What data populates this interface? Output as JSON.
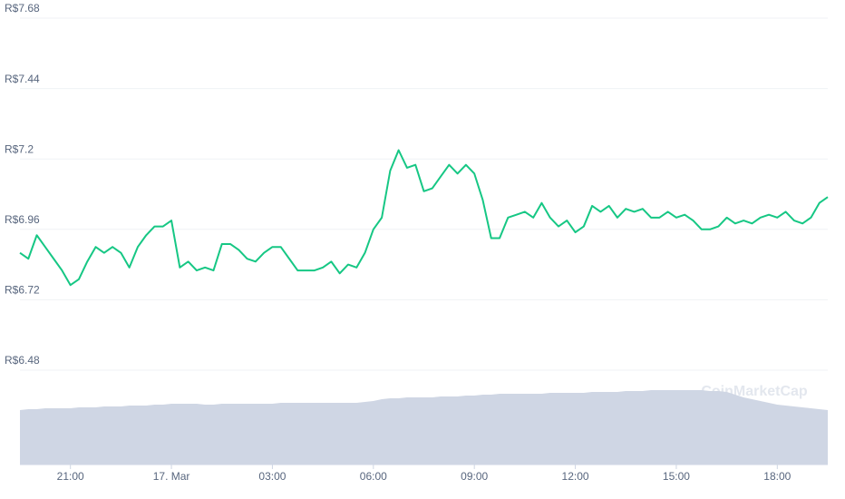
{
  "chart_data": {
    "type": "line",
    "watermark": "CoinMarketCap",
    "xlim": [
      0,
      96
    ],
    "xticks": [
      {
        "value": 6,
        "label": "21:00"
      },
      {
        "value": 18,
        "label": "17. Mar"
      },
      {
        "value": 30,
        "label": "03:00"
      },
      {
        "value": 42,
        "label": "06:00"
      },
      {
        "value": 54,
        "label": "09:00"
      },
      {
        "value": 66,
        "label": "12:00"
      },
      {
        "value": 78,
        "label": "15:00"
      },
      {
        "value": 90,
        "label": "18:00"
      }
    ],
    "ylim": [
      6.48,
      7.68
    ],
    "yticks": [
      {
        "value": 6.48,
        "label": "R$6.48"
      },
      {
        "value": 6.72,
        "label": "R$6.72"
      },
      {
        "value": 6.96,
        "label": "R$6.96"
      },
      {
        "value": 7.2,
        "label": "R$7.2"
      },
      {
        "value": 7.44,
        "label": "R$7.44"
      },
      {
        "value": 7.68,
        "label": "R$7.68"
      }
    ],
    "y2lim": [
      0,
      420
    ],
    "grid": true,
    "series": [
      {
        "color": "#16c784",
        "values": [
          6.88,
          6.86,
          6.94,
          6.9,
          6.86,
          6.82,
          6.77,
          6.79,
          6.85,
          6.9,
          6.88,
          6.9,
          6.88,
          6.83,
          6.9,
          6.94,
          6.97,
          6.97,
          6.99,
          6.83,
          6.85,
          6.82,
          6.83,
          6.82,
          6.91,
          6.91,
          6.89,
          6.86,
          6.85,
          6.88,
          6.9,
          6.9,
          6.86,
          6.82,
          6.82,
          6.82,
          6.83,
          6.85,
          6.81,
          6.84,
          6.83,
          6.88,
          6.96,
          7.0,
          7.16,
          7.23,
          7.17,
          7.18,
          7.09,
          7.1,
          7.14,
          7.18,
          7.15,
          7.18,
          7.15,
          7.06,
          6.93,
          6.93,
          7.0,
          7.01,
          7.02,
          7.0,
          7.05,
          7.0,
          6.97,
          6.99,
          6.95,
          6.97,
          7.04,
          7.02,
          7.04,
          7.0,
          7.03,
          7.02,
          7.03,
          7.0,
          7.0,
          7.02,
          7.0,
          7.01,
          6.99,
          6.96,
          6.96,
          6.97,
          7.0,
          6.98,
          6.99,
          6.98,
          7.0,
          7.01,
          7.0,
          7.02,
          6.99,
          6.98,
          7.0,
          7.05,
          7.07
        ]
      },
      {
        "color": "#cfd6e4",
        "axis": "y2",
        "values": [
          60,
          61,
          61,
          62,
          62,
          62,
          62,
          63,
          63,
          63,
          64,
          64,
          64,
          65,
          65,
          65,
          66,
          66,
          67,
          67,
          67,
          67,
          66,
          66,
          67,
          67,
          67,
          67,
          67,
          67,
          67,
          68,
          68,
          68,
          68,
          68,
          68,
          68,
          68,
          68,
          68,
          69,
          70,
          72,
          73,
          73,
          74,
          74,
          74,
          74,
          75,
          75,
          75,
          76,
          76,
          77,
          77,
          78,
          78,
          78,
          78,
          78,
          78,
          79,
          79,
          79,
          79,
          79,
          80,
          80,
          80,
          80,
          81,
          81,
          81,
          82,
          82,
          82,
          82,
          82,
          82,
          82,
          81,
          81,
          80,
          77,
          74,
          72,
          70,
          68,
          66,
          65,
          64,
          63,
          62,
          61,
          60
        ]
      }
    ]
  }
}
